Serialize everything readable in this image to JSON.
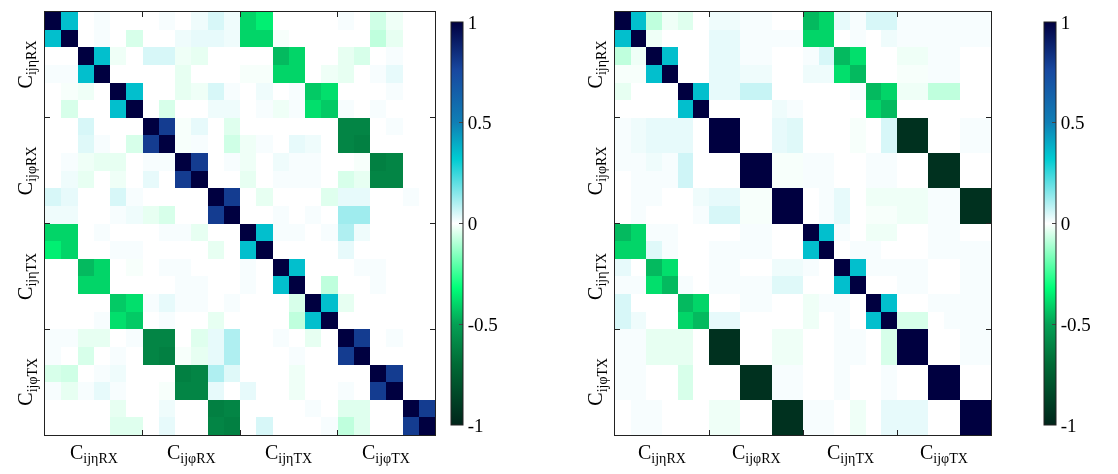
{
  "chart_data": [
    {
      "type": "heatmap",
      "categories": [
        null,
        null,
        null,
        null,
        null,
        null,
        null,
        null,
        null,
        null,
        null,
        null,
        null,
        null,
        null,
        null,
        null,
        null,
        null,
        null,
        null,
        null,
        null,
        null
      ],
      "y_categories": [
        null,
        null,
        null,
        null,
        null,
        null,
        null,
        null,
        null,
        null,
        null,
        null,
        null,
        null,
        null,
        null,
        null,
        null,
        null,
        null,
        null,
        null,
        null,
        null
      ],
      "clim": [
        -1,
        1
      ],
      "cticks": [
        -1,
        -0.5,
        0,
        0.5,
        1
      ],
      "annotations": [
        "C$_{ijηRX}$",
        "C$_{ijφRX}$",
        "C$_{ijηTX}$",
        "C$_{ijφTX}$",
        "C$_{ijηRX}$",
        "C$_{ijφRX}$",
        "C$_{ijηTX}$",
        "C$_{ijφTX}$"
      ],
      "cells": [
        [
          1,
          0.35,
          0,
          0.01,
          0,
          0,
          0,
          0.01,
          0,
          0.02,
          0.05,
          0.02,
          -0.4,
          -0.35,
          0,
          0,
          0,
          0,
          0.01,
          0,
          -0.06,
          -0.02,
          0,
          0
        ],
        [
          0.35,
          1,
          0,
          0.01,
          0,
          -0.05,
          0,
          0,
          0.02,
          0.03,
          0.03,
          0.02,
          -0.4,
          -0.4,
          -0.01,
          0,
          0,
          0,
          0,
          0,
          -0.08,
          -0.03,
          0,
          0
        ],
        [
          0,
          0,
          1,
          0.35,
          -0.02,
          0,
          0.05,
          0.05,
          -0.02,
          -0.03,
          0,
          0,
          0,
          0,
          -0.45,
          -0.4,
          0,
          0,
          -0.03,
          -0.05,
          0,
          0.01,
          0,
          0
        ],
        [
          0.01,
          0.01,
          0.35,
          1,
          0,
          0,
          0,
          0,
          -0.03,
          0,
          0,
          0,
          -0.01,
          -0.01,
          -0.4,
          -0.4,
          0,
          -0.02,
          -0.03,
          0,
          0.01,
          0.03,
          0,
          0
        ],
        [
          0,
          -0.01,
          -0.02,
          0,
          1,
          0.35,
          0,
          0,
          -0.03,
          -0.02,
          0.05,
          0.01,
          0,
          0.02,
          0,
          0.01,
          -0.42,
          -0.38,
          0,
          0,
          0,
          0.01,
          0,
          0
        ],
        [
          0,
          -0.05,
          0,
          0,
          0.35,
          1,
          0,
          -0.05,
          0,
          0,
          0.02,
          0.02,
          0,
          0.01,
          -0.02,
          0.01,
          -0.38,
          -0.42,
          0.01,
          0,
          0.01,
          0,
          0,
          0
        ],
        [
          0,
          0,
          0.05,
          0,
          0,
          0,
          1,
          0.8,
          -0.01,
          0.03,
          0,
          -0.04,
          0,
          0,
          0,
          0,
          0,
          0,
          -0.6,
          -0.6,
          0,
          0.01,
          0,
          0
        ],
        [
          0,
          0,
          0.04,
          0.01,
          0,
          -0.05,
          0.8,
          1,
          -0.01,
          0.01,
          0,
          -0.06,
          -0.02,
          0.01,
          0,
          0.03,
          0.02,
          0,
          -0.6,
          -0.62,
          0,
          0,
          0,
          0
        ],
        [
          0,
          0.01,
          -0.02,
          -0.03,
          -0.03,
          0,
          0.01,
          0.01,
          1,
          0.8,
          0,
          0.01,
          -0.02,
          0,
          0.02,
          0.01,
          0.01,
          0,
          0,
          -0.01,
          -0.62,
          -0.6,
          0,
          0
        ],
        [
          0,
          0.02,
          -0.03,
          0,
          -0.02,
          0,
          0.03,
          0,
          0.8,
          1,
          0,
          0,
          -0.03,
          0,
          0.01,
          0.01,
          0.01,
          0,
          -0.05,
          -0.03,
          -0.6,
          -0.6,
          0,
          0
        ],
        [
          0.05,
          0.03,
          0,
          0,
          0.05,
          0.01,
          0,
          0,
          0,
          0,
          1,
          0.8,
          0,
          -0.03,
          0,
          0,
          0,
          -0.04,
          0.03,
          0.03,
          0,
          0,
          0.01,
          0
        ],
        [
          0.02,
          0.02,
          0,
          0,
          0.01,
          0.02,
          -0.03,
          -0.05,
          0,
          0,
          0.8,
          1,
          0,
          0,
          0.01,
          0,
          0.01,
          0,
          0.12,
          0.12,
          0,
          0,
          0,
          0
        ],
        [
          -0.4,
          -0.4,
          0,
          0.01,
          0,
          0,
          0,
          0.01,
          0.01,
          -0.03,
          0,
          0,
          1,
          0.35,
          0.01,
          0.01,
          0,
          0.01,
          0.1,
          0.02,
          0,
          0,
          0,
          0
        ],
        [
          -0.35,
          -0.4,
          0,
          0,
          0.01,
          0.01,
          0,
          0,
          0,
          0,
          -0.03,
          0,
          0.35,
          1,
          0,
          0,
          0,
          0,
          0.03,
          0,
          0,
          0,
          0,
          0
        ],
        [
          0,
          0,
          -0.45,
          -0.4,
          0,
          -0.01,
          0,
          0.01,
          0.01,
          0,
          0,
          0,
          0.01,
          0,
          1,
          0.35,
          0,
          0,
          0,
          0.01,
          0.01,
          0,
          0,
          0
        ],
        [
          0,
          0,
          -0.4,
          -0.4,
          0,
          0,
          0,
          0,
          0.01,
          0.01,
          0,
          0,
          0.01,
          0,
          0.35,
          1,
          0,
          -0.08,
          0,
          0,
          0.01,
          0,
          0,
          0
        ],
        [
          0,
          0,
          0,
          0,
          -0.42,
          -0.38,
          0.01,
          0.03,
          0.01,
          0.01,
          0,
          0.01,
          0,
          0,
          0,
          -0.05,
          1,
          0.35,
          -0.03,
          0,
          0,
          0,
          0,
          0
        ],
        [
          0,
          0,
          0,
          0.01,
          -0.38,
          -0.42,
          0,
          0.01,
          0,
          0,
          -0.03,
          0,
          0,
          0,
          0,
          -0.08,
          0.35,
          1,
          0,
          0,
          0,
          0,
          0,
          0
        ],
        [
          0.01,
          0.01,
          -0.03,
          -0.03,
          0,
          0.01,
          -0.6,
          -0.6,
          0,
          -0.04,
          0.03,
          0.1,
          0,
          0,
          0.01,
          0,
          -0.03,
          0,
          1,
          0.8,
          0,
          0.01,
          0,
          0
        ],
        [
          0.01,
          0,
          -0.05,
          0,
          0.01,
          0,
          -0.6,
          -0.62,
          -0.01,
          -0.03,
          0.03,
          0.1,
          0,
          0,
          0,
          0.01,
          0,
          0,
          0.8,
          1,
          0,
          0,
          0,
          0
        ],
        [
          -0.05,
          -0.06,
          0,
          0.01,
          0.02,
          0,
          0,
          0,
          -0.62,
          -0.6,
          0.1,
          0.04,
          0,
          0,
          0,
          -0.02,
          0,
          0,
          0,
          0,
          1,
          0.8,
          0,
          0
        ],
        [
          0.01,
          -0.03,
          0.01,
          0.03,
          0.01,
          0,
          0,
          -0.01,
          -0.6,
          -0.6,
          0.03,
          0,
          0.03,
          0,
          0,
          -0.02,
          0,
          0,
          0.01,
          0,
          0.8,
          1,
          0,
          0
        ],
        [
          0,
          0,
          0,
          0,
          -0.03,
          0,
          0,
          0.02,
          0,
          0,
          -0.62,
          -0.6,
          0,
          0,
          0,
          0,
          0.01,
          0,
          -0.04,
          -0.04,
          0,
          0,
          1,
          0.8
        ],
        [
          0,
          0,
          0,
          0,
          -0.04,
          -0.04,
          0,
          0.03,
          0,
          0,
          -0.6,
          -0.62,
          0,
          0.05,
          0,
          0,
          0,
          0.01,
          -0.08,
          -0.04,
          0,
          0,
          0.8,
          1
        ]
      ]
    },
    {
      "type": "heatmap",
      "categories": [
        null,
        null,
        null,
        null,
        null,
        null,
        null,
        null,
        null,
        null,
        null,
        null,
        null,
        null,
        null,
        null,
        null,
        null,
        null,
        null,
        null,
        null,
        null,
        null
      ],
      "y_categories": [
        null,
        null,
        null,
        null,
        null,
        null,
        null,
        null,
        null,
        null,
        null,
        null,
        null,
        null,
        null,
        null,
        null,
        null,
        null,
        null,
        null,
        null,
        null,
        null
      ],
      "clim": [
        -1,
        1
      ],
      "cticks": [
        -1,
        -0.5,
        0,
        0.5,
        1
      ],
      "annotations": [
        "C$_{ijηRX}$",
        "C$_{ijφRX}$",
        "C$_{ijηTX}$",
        "C$_{ijφTX}$",
        "C$_{ijηRX}$",
        "C$_{ijφRX}$",
        "C$_{ijηTX}$",
        "C$_{ijφTX}$"
      ],
      "cells": [
        [
          1,
          0.35,
          -0.08,
          -0.02,
          -0.04,
          0,
          0.02,
          0.02,
          0.01,
          0.01,
          0,
          0,
          -0.45,
          -0.4,
          0.03,
          0.01,
          0.05,
          0.05,
          0.01,
          0.01,
          0.01,
          0.01,
          0.01,
          0.01
        ],
        [
          0.35,
          1,
          -0.02,
          0,
          0,
          0,
          0.03,
          0.03,
          0.01,
          0.01,
          0.01,
          0.01,
          -0.4,
          -0.4,
          0,
          0.01,
          0,
          0.02,
          0.01,
          0.01,
          0.01,
          0.01,
          0.01,
          0.01
        ],
        [
          -0.08,
          -0.02,
          1,
          0.35,
          0,
          0,
          0.03,
          0.03,
          0.01,
          0.01,
          0,
          0,
          0.01,
          0.05,
          -0.45,
          -0.38,
          0,
          0,
          -0.02,
          -0.02,
          0.01,
          0.01,
          0,
          0
        ],
        [
          -0.01,
          -0.01,
          0.35,
          1,
          0,
          0,
          0.03,
          0.03,
          0.02,
          0.02,
          0,
          0,
          0.02,
          0.02,
          -0.38,
          -0.45,
          0,
          0,
          -0.01,
          -0.01,
          0.01,
          0.01,
          0,
          0
        ],
        [
          -0.03,
          0,
          0,
          0,
          1,
          0.35,
          0.03,
          0.03,
          0.07,
          0.07,
          0,
          0,
          0,
          0,
          0,
          0.01,
          -0.45,
          -0.4,
          -0.02,
          -0.02,
          -0.08,
          -0.08,
          0,
          0
        ],
        [
          0,
          0,
          0,
          0,
          0.35,
          1,
          0,
          0,
          0,
          0,
          0.02,
          0.01,
          0,
          0,
          0,
          0,
          -0.4,
          -0.45,
          0,
          0,
          0,
          0,
          0,
          0
        ],
        [
          0.01,
          0.02,
          0.03,
          0.03,
          0.03,
          0,
          1,
          1,
          0,
          0,
          0.03,
          0.04,
          0,
          0,
          0,
          -0.01,
          0,
          0.05,
          -0.95,
          -0.95,
          0,
          0,
          0.01,
          0.01
        ],
        [
          0.01,
          0.02,
          0.03,
          0.03,
          0.03,
          0,
          1,
          1,
          0,
          0,
          0.03,
          0.04,
          0,
          0,
          0,
          -0.01,
          0,
          0.05,
          -0.95,
          -0.95,
          0,
          0,
          0.01,
          0.01
        ],
        [
          0.01,
          0.01,
          0.02,
          0.01,
          0.06,
          0,
          0,
          0,
          1,
          1,
          -0.01,
          -0.01,
          0.01,
          0.01,
          0,
          0,
          0.01,
          0.01,
          0,
          0,
          -0.95,
          -0.95,
          0,
          0
        ],
        [
          0,
          0.01,
          0.01,
          0.01,
          0.06,
          0,
          0,
          0,
          1,
          1,
          -0.01,
          -0.01,
          0.01,
          0.01,
          0,
          0,
          0.01,
          0.01,
          0,
          0,
          -0.95,
          -0.95,
          0,
          0
        ],
        [
          0,
          0.01,
          0.01,
          0,
          0,
          0.02,
          0.03,
          0.03,
          -0.01,
          -0.01,
          1,
          1,
          0,
          0.01,
          0.03,
          0,
          -0.02,
          -0.02,
          -0.02,
          -0.02,
          0.01,
          0.01,
          -0.95,
          -0.95
        ],
        [
          0,
          0.01,
          0,
          0,
          0,
          0.01,
          0.05,
          0.05,
          -0.01,
          -0.01,
          1,
          1,
          0,
          0.01,
          0.03,
          0,
          -0.01,
          -0.01,
          -0.02,
          -0.02,
          0.01,
          0.01,
          -0.95,
          -0.95
        ],
        [
          -0.45,
          -0.4,
          0.01,
          0.01,
          0,
          0,
          0,
          0,
          0.01,
          0.01,
          0,
          0,
          1,
          0.35,
          0.01,
          0,
          -0.02,
          -0.02,
          0,
          0,
          0.01,
          0.01,
          0,
          0
        ],
        [
          -0.4,
          -0.4,
          0.04,
          0.01,
          0,
          0,
          0.01,
          0.01,
          0.01,
          0.01,
          0,
          0,
          0.35,
          1,
          0,
          0.01,
          0.01,
          0,
          0,
          0,
          0.01,
          0.01,
          0.01,
          0.01
        ],
        [
          0.03,
          0,
          -0.45,
          -0.38,
          0,
          0,
          0.01,
          0.01,
          0,
          0,
          0.02,
          0.02,
          0.01,
          0,
          1,
          0.35,
          0.01,
          0.01,
          0.01,
          0.01,
          0,
          0,
          0.01,
          0.01
        ],
        [
          0.01,
          0.01,
          -0.38,
          -0.45,
          0.01,
          0,
          0.01,
          0.01,
          0.01,
          0.01,
          0.04,
          0.04,
          0,
          0,
          0.35,
          1,
          0,
          0,
          0.01,
          0.01,
          0,
          0,
          0.01,
          0.01
        ],
        [
          0.05,
          0,
          0,
          0,
          -0.45,
          -0.4,
          0,
          0,
          0.01,
          0.01,
          0,
          0,
          -0.02,
          0.01,
          0.01,
          0,
          1,
          0.35,
          0,
          0,
          0.01,
          0.01,
          0.01,
          0.01
        ],
        [
          0.05,
          0.02,
          0,
          0,
          -0.4,
          -0.45,
          0.03,
          0.03,
          0,
          0,
          0,
          0,
          -0.02,
          0,
          0.01,
          0,
          0.35,
          1,
          -0.05,
          -0.05,
          0,
          0.01,
          0.01,
          0.01
        ],
        [
          0.01,
          0.01,
          -0.03,
          -0.03,
          -0.03,
          0,
          -0.95,
          -0.95,
          0,
          0,
          -0.02,
          -0.02,
          0,
          0,
          0.01,
          0.01,
          0,
          -0.05,
          1,
          1,
          0,
          0,
          0.01,
          0.01
        ],
        [
          0.01,
          0.01,
          -0.03,
          -0.03,
          -0.03,
          0,
          -0.95,
          -0.95,
          0,
          0,
          -0.02,
          -0.02,
          0,
          0,
          0.01,
          0.01,
          0,
          -0.05,
          1,
          1,
          0,
          0,
          0.01,
          0.01
        ],
        [
          0.01,
          0.01,
          0,
          0,
          -0.05,
          0,
          0,
          0,
          -0.95,
          -0.95,
          0.01,
          0.01,
          0,
          0,
          0.01,
          0,
          0,
          0.01,
          0,
          0,
          1,
          1,
          0,
          0
        ],
        [
          0.01,
          0.01,
          0,
          0,
          -0.05,
          0,
          0,
          0,
          -0.95,
          -0.95,
          0.01,
          0.01,
          0,
          0,
          0.01,
          0,
          0,
          0.01,
          0,
          0,
          1,
          1,
          0,
          0
        ],
        [
          0,
          0.01,
          0.01,
          0,
          0,
          0,
          -0.02,
          -0.02,
          0,
          0,
          -0.95,
          -0.95,
          0.01,
          0.01,
          0,
          -0.02,
          0,
          0.03,
          0.03,
          0.03,
          0,
          0,
          1,
          1
        ],
        [
          0,
          0.01,
          0.01,
          0,
          0,
          0,
          -0.02,
          -0.02,
          0,
          0,
          -0.95,
          -0.95,
          0.01,
          0.01,
          0,
          -0.02,
          0,
          0.03,
          0.03,
          0.03,
          0,
          0,
          1,
          1
        ]
      ]
    }
  ]
}
